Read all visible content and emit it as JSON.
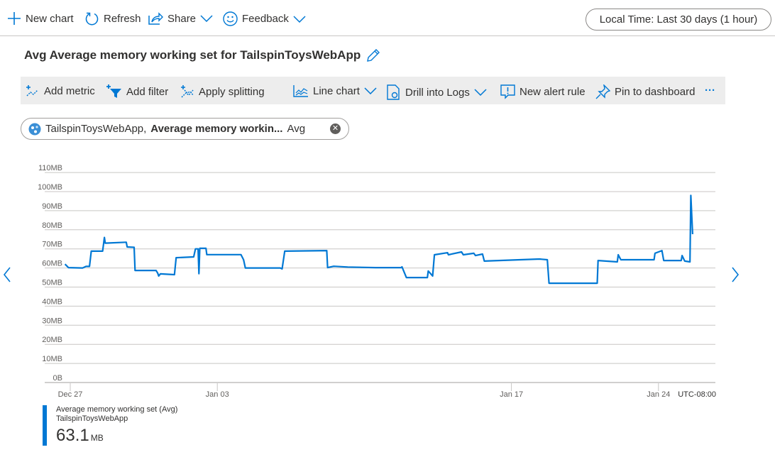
{
  "topbar": {
    "new_chart": "New chart",
    "refresh": "Refresh",
    "share": "Share",
    "feedback": "Feedback",
    "time_range": "Local Time: Last 30 days (1 hour)"
  },
  "title": "Avg Average memory working set for TailspinToysWebApp",
  "chart_toolbar": {
    "add_metric": "Add metric",
    "add_filter": "Add filter",
    "apply_splitting": "Apply splitting",
    "line_chart": "Line chart",
    "drill_logs": "Drill into Logs",
    "new_alert": "New alert rule",
    "pin": "Pin to dashboard",
    "more": "···"
  },
  "chip": {
    "resource": "TailspinToysWebApp,",
    "metric": "Average memory workin...",
    "agg": "Avg"
  },
  "colors": {
    "accent": "#0078d4",
    "grid": "#c8c6c4"
  },
  "chart_data": {
    "type": "line",
    "title": "Avg Average memory working set for TailspinToysWebApp",
    "ylim": [
      0,
      110
    ],
    "yticks": [
      "0B",
      "10MB",
      "20MB",
      "30MB",
      "40MB",
      "50MB",
      "60MB",
      "70MB",
      "80MB",
      "90MB",
      "100MB",
      "110MB"
    ],
    "xticks": [
      "Dec 27",
      "Jan 03",
      "Jan 17",
      "Jan 24"
    ],
    "timezone": "UTC-08:00",
    "grid": true,
    "series": [
      {
        "name": "Average memory working set (Avg)",
        "unit": "MB",
        "points": [
          [
            "Dec 26 18:00",
            62
          ],
          [
            "Dec 26 22:00",
            60.2
          ],
          [
            "Dec 27 14:00",
            60
          ],
          [
            "Dec 27 18:00",
            60.8
          ],
          [
            "Dec 27 22:00",
            60.8
          ],
          [
            "Dec 28 00:00",
            68.8
          ],
          [
            "Dec 28 13:00",
            68.8
          ],
          [
            "Dec 28 15:00",
            76
          ],
          [
            "Dec 28 16:00",
            73
          ],
          [
            "Dec 29 16:00",
            73.5
          ],
          [
            "Dec 29 17:00",
            71
          ],
          [
            "Dec 30 01:00",
            70.8
          ],
          [
            "Dec 30 02:00",
            58.7
          ],
          [
            "Dec 31 02:00",
            58.7
          ],
          [
            "Dec 31 04:00",
            57.2
          ],
          [
            "Dec 31 05:00",
            55.8
          ],
          [
            "Dec 31 07:00",
            56.9
          ],
          [
            "Dec 31 23:00",
            56.5
          ],
          [
            "Jan 01 01:00",
            65.4
          ],
          [
            "Jan 01 21:00",
            65.8
          ],
          [
            "Jan 01 23:00",
            70
          ],
          [
            "Jan 02 02:00",
            70
          ],
          [
            "Jan 02 03:00",
            57
          ],
          [
            "Jan 02 04:00",
            70.3
          ],
          [
            "Jan 02 11:00",
            70.3
          ],
          [
            "Jan 02 12:00",
            67
          ],
          [
            "Jan 04 03:00",
            67
          ],
          [
            "Jan 04 06:00",
            64.3
          ],
          [
            "Jan 04 08:00",
            60
          ],
          [
            "Jan 06 00:00",
            60
          ],
          [
            "Jan 06 02:00",
            59.5
          ],
          [
            "Jan 06 05:00",
            68.8
          ],
          [
            "Jan 08 05:00",
            69.1
          ],
          [
            "Jan 08 06:00",
            60.2
          ],
          [
            "Jan 08 13:00",
            60.9
          ],
          [
            "Jan 09 05:00",
            60.5
          ],
          [
            "Jan 10 13:00",
            60.2
          ],
          [
            "Jan 11 18:00",
            60.2
          ],
          [
            "Jan 11 19:00",
            60.6
          ],
          [
            "Jan 12 00:00",
            55
          ],
          [
            "Jan 13 00:00",
            55
          ],
          [
            "Jan 13 01:00",
            58.4
          ],
          [
            "Jan 13 06:00",
            55.8
          ],
          [
            "Jan 13 08:00",
            66.9
          ],
          [
            "Jan 13 23:00",
            68
          ],
          [
            "Jan 14 00:00",
            66.9
          ],
          [
            "Jan 14 15:00",
            68.4
          ],
          [
            "Jan 14 17:00",
            66.9
          ],
          [
            "Jan 15 05:00",
            67.7
          ],
          [
            "Jan 15 07:00",
            66.5
          ],
          [
            "Jan 15 15:00",
            67.3
          ],
          [
            "Jan 15 17:00",
            63.6
          ],
          [
            "Jan 18 08:00",
            64.7
          ],
          [
            "Jan 18 17:00",
            64.3
          ],
          [
            "Jan 18 19:00",
            52
          ],
          [
            "Jan 21 02:00",
            52
          ],
          [
            "Jan 21 03:00",
            63.9
          ],
          [
            "Jan 22 01:00",
            63.2
          ],
          [
            "Jan 22 02:00",
            66.9
          ],
          [
            "Jan 22 05:00",
            64.3
          ],
          [
            "Jan 23 19:00",
            64.3
          ],
          [
            "Jan 23 20:00",
            67.7
          ],
          [
            "Jan 24 04:00",
            69.1
          ],
          [
            "Jan 24 06:00",
            63.9
          ],
          [
            "Jan 25 02:00",
            63.9
          ],
          [
            "Jan 25 03:00",
            66.5
          ],
          [
            "Jan 25 06:00",
            63.6
          ],
          [
            "Jan 25 12:00",
            63.2
          ],
          [
            "Jan 25 13:00",
            98
          ],
          [
            "Jan 25 15:00",
            77.7
          ]
        ]
      }
    ]
  },
  "legend": {
    "metric": "Average memory working set (Avg)",
    "resource": "TailspinToysWebApp",
    "value": "63.1",
    "unit": "MB"
  }
}
